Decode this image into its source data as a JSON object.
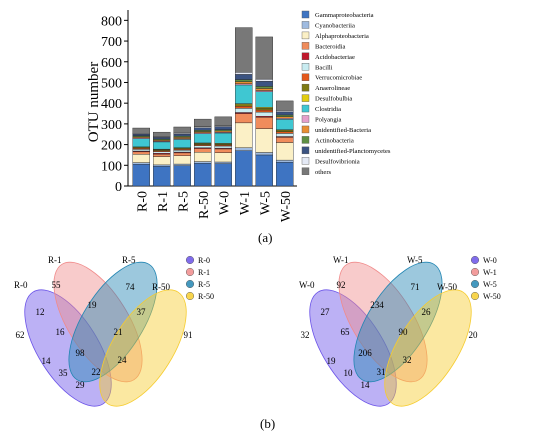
{
  "panel_labels": {
    "a": "(a)",
    "b": "(b)"
  },
  "chart_data": [
    {
      "type": "bar",
      "stacked": true,
      "ylabel": "OTU number",
      "xlabel": "",
      "ylim": [
        0,
        850
      ],
      "yticks": [
        0,
        100,
        200,
        300,
        400,
        500,
        600,
        700,
        800
      ],
      "grid": false,
      "legend_position": "right",
      "categories": [
        "R-0",
        "R-1",
        "R-5",
        "R-50",
        "W-0",
        "W-1",
        "W-5",
        "W-50"
      ],
      "series": [
        {
          "name": "Gammaproteobacteria",
          "color": "#3e74c2",
          "values": [
            105,
            95,
            98,
            110,
            108,
            170,
            150,
            115
          ]
        },
        {
          "name": "Cyanobacteriia",
          "color": "#9fbbe0",
          "values": [
            8,
            7,
            8,
            8,
            8,
            15,
            12,
            10
          ]
        },
        {
          "name": "Alphaproteobacteria",
          "color": "#fbf0c6",
          "values": [
            40,
            40,
            40,
            45,
            45,
            120,
            115,
            85
          ]
        },
        {
          "name": "Bacteroidia",
          "color": "#f08c5c",
          "values": [
            12,
            12,
            14,
            18,
            18,
            45,
            55,
            25
          ]
        },
        {
          "name": "Acidobacteriae",
          "color": "#c0172b",
          "values": [
            4,
            4,
            4,
            4,
            4,
            5,
            5,
            4
          ]
        },
        {
          "name": "Bacilli",
          "color": "#c9ecf1",
          "values": [
            8,
            8,
            9,
            10,
            10,
            20,
            20,
            15
          ]
        },
        {
          "name": "Verrucomicrobiae",
          "color": "#e4581c",
          "values": [
            5,
            5,
            5,
            5,
            5,
            10,
            10,
            8
          ]
        },
        {
          "name": "Anaerolineae",
          "color": "#7e7a13",
          "values": [
            4,
            4,
            4,
            5,
            5,
            8,
            8,
            6
          ]
        },
        {
          "name": "Desulfobulbia",
          "color": "#e2cd10",
          "values": [
            3,
            3,
            3,
            3,
            3,
            5,
            5,
            4
          ]
        },
        {
          "name": "Clostridia",
          "color": "#3fc7d2",
          "values": [
            40,
            35,
            40,
            45,
            50,
            90,
            75,
            50
          ]
        },
        {
          "name": "Polyangia",
          "color": "#e59fcb",
          "values": [
            4,
            4,
            4,
            4,
            4,
            6,
            6,
            5
          ]
        },
        {
          "name": "unidentified-Bacteria",
          "color": "#e88e33",
          "values": [
            5,
            5,
            6,
            6,
            6,
            10,
            10,
            8
          ]
        },
        {
          "name": "Actinobacteria",
          "color": "#5e8f43",
          "values": [
            5,
            5,
            6,
            6,
            6,
            10,
            10,
            8
          ]
        },
        {
          "name": "unidentified-Planctomycetes",
          "color": "#3b5382",
          "values": [
            8,
            8,
            10,
            12,
            15,
            25,
            25,
            15
          ]
        },
        {
          "name": "Desulfovibrionia",
          "color": "#e4e9f5",
          "values": [
            4,
            4,
            5,
            5,
            5,
            10,
            10,
            7
          ]
        },
        {
          "name": "others",
          "color": "#787878",
          "values": [
            25,
            21,
            29,
            37,
            42,
            216,
            204,
            46
          ]
        }
      ]
    },
    {
      "type": "venn",
      "sets": [
        "R-0",
        "R-1",
        "R-5",
        "R-50"
      ],
      "set_colors": [
        "#6a52e8",
        "#f08b8b",
        "#2386b3",
        "#f6cc2e"
      ],
      "regions": {
        "R-0": 62,
        "R-1": 55,
        "R-5": 74,
        "R-50": 91,
        "R-0&R-1": 12,
        "R-1&R-5": 19,
        "R-5&R-50": 37,
        "R-0&R-50": 29,
        "R-0&R-5": 14,
        "R-1&R-50": 24,
        "R-0&R-1&R-5": 16,
        "R-1&R-5&R-50": 21,
        "R-0&R-1&R-50": 22,
        "R-0&R-5&R-50": 35,
        "all": 98
      }
    },
    {
      "type": "venn",
      "sets": [
        "W-0",
        "W-1",
        "W-5",
        "W-50"
      ],
      "set_colors": [
        "#6a52e8",
        "#f08b8b",
        "#2386b3",
        "#f6cc2e"
      ],
      "regions": {
        "W-0": 32,
        "W-1": 92,
        "W-5": 71,
        "W-50": 20,
        "W-0&W-1": 27,
        "W-1&W-5": 234,
        "W-5&W-50": 26,
        "W-0&W-50": 14,
        "W-0&W-5": 19,
        "W-1&W-50": 32,
        "W-0&W-1&W-5": 65,
        "W-1&W-5&W-50": 90,
        "W-0&W-1&W-50": 31,
        "W-0&W-5&W-50": 10,
        "all": 206
      }
    }
  ]
}
